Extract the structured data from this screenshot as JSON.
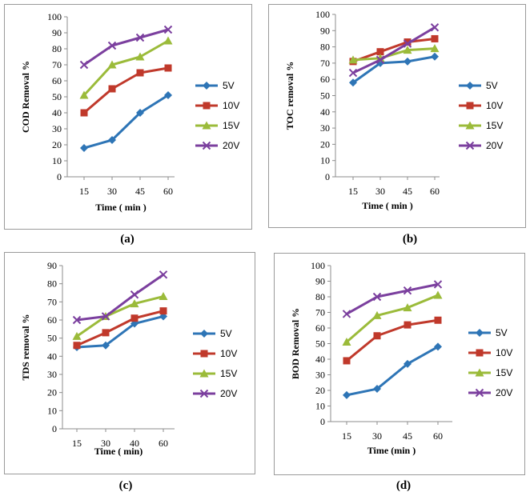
{
  "colors": {
    "5V": "#2e75b6",
    "10V": "#c0392b",
    "15V": "#9bbb3a",
    "20V": "#7b3f9e"
  },
  "chart_data": [
    {
      "type": "line",
      "caption": "(a)",
      "ylabel": "COD Removal %",
      "xlabel": "Time ( min )",
      "categories": [
        "15",
        "30",
        "45",
        "60"
      ],
      "ylim": [
        0,
        100
      ],
      "yticks": [
        0,
        10,
        20,
        30,
        40,
        50,
        60,
        70,
        80,
        90,
        100
      ],
      "legend": "right",
      "series": [
        {
          "name": "5V",
          "marker": "diamond",
          "values": [
            18,
            23,
            40,
            51
          ]
        },
        {
          "name": "10V",
          "marker": "square",
          "values": [
            40,
            55,
            65,
            68
          ]
        },
        {
          "name": "15V",
          "marker": "triangle",
          "values": [
            51,
            70,
            75,
            85
          ]
        },
        {
          "name": "20V",
          "marker": "x",
          "values": [
            70,
            82,
            87,
            92
          ]
        }
      ]
    },
    {
      "type": "line",
      "caption": "(b)",
      "ylabel": "TOC removal %",
      "xlabel": "Time ( min )",
      "categories": [
        "15",
        "30",
        "45",
        "60"
      ],
      "ylim": [
        0,
        100
      ],
      "yticks": [
        0,
        10,
        20,
        30,
        40,
        50,
        60,
        70,
        80,
        90,
        100
      ],
      "legend": "right",
      "series": [
        {
          "name": "5V",
          "marker": "diamond",
          "values": [
            58,
            70,
            71,
            74
          ]
        },
        {
          "name": "10V",
          "marker": "square",
          "values": [
            71,
            77,
            83,
            85
          ]
        },
        {
          "name": "15V",
          "marker": "triangle",
          "values": [
            72,
            73,
            78,
            79
          ]
        },
        {
          "name": "20V",
          "marker": "x",
          "values": [
            64,
            72,
            82,
            92
          ]
        }
      ]
    },
    {
      "type": "line",
      "caption": "(c)",
      "ylabel": "TDS removal %",
      "xlabel": "Time ( min)",
      "categories": [
        "15",
        "30",
        "40",
        "60"
      ],
      "ylim": [
        0,
        90
      ],
      "yticks": [
        0,
        10,
        20,
        30,
        40,
        50,
        60,
        70,
        80,
        90
      ],
      "legend": "right",
      "series": [
        {
          "name": "5V",
          "marker": "diamond",
          "values": [
            45,
            46,
            58,
            62
          ]
        },
        {
          "name": "10V",
          "marker": "square",
          "values": [
            46,
            53,
            61,
            65
          ]
        },
        {
          "name": "15V",
          "marker": "triangle",
          "values": [
            51,
            62,
            69,
            73
          ]
        },
        {
          "name": "20V",
          "marker": "x",
          "values": [
            60,
            62,
            74,
            85
          ]
        }
      ]
    },
    {
      "type": "line",
      "caption": "(d)",
      "ylabel": "BOD Removal %",
      "xlabel": "Time (min )",
      "categories": [
        "15",
        "30",
        "45",
        "60"
      ],
      "ylim": [
        0,
        100
      ],
      "yticks": [
        0,
        10,
        20,
        30,
        40,
        50,
        60,
        70,
        80,
        90,
        100
      ],
      "legend": "right",
      "series": [
        {
          "name": "5V",
          "marker": "diamond",
          "values": [
            17,
            21,
            37,
            48
          ]
        },
        {
          "name": "10V",
          "marker": "square",
          "values": [
            39,
            55,
            62,
            65
          ]
        },
        {
          "name": "15V",
          "marker": "triangle",
          "values": [
            51,
            68,
            73,
            81
          ]
        },
        {
          "name": "20V",
          "marker": "x",
          "values": [
            69,
            80,
            84,
            88
          ]
        }
      ]
    }
  ]
}
